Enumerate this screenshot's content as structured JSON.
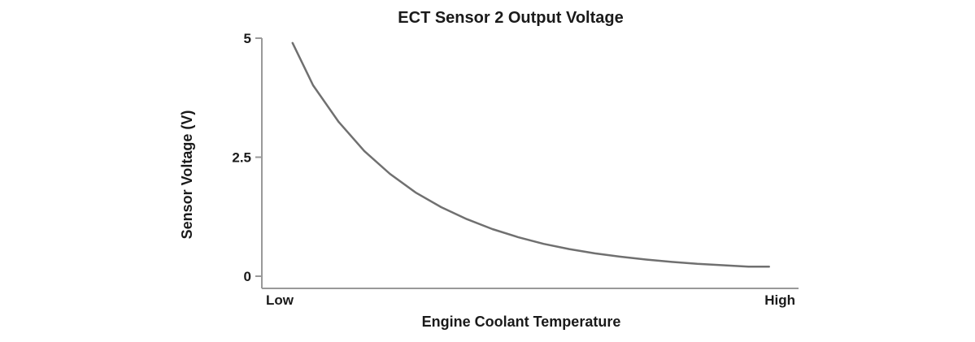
{
  "chart_data": {
    "type": "line",
    "title": "ECT Sensor 2 Output Voltage",
    "xlabel": "Engine Coolant Temperature",
    "ylabel": "Sensor Voltage (V)",
    "x_tick_labels": [
      "Low",
      "High"
    ],
    "y_ticks": [
      {
        "value": 0,
        "label": "0"
      },
      {
        "value": 2.5,
        "label": "2.5"
      },
      {
        "value": 5,
        "label": "5"
      }
    ],
    "ylim": [
      0,
      5
    ],
    "xlim": [
      0,
      1
    ],
    "grid": false,
    "series": [
      {
        "x": [
          0.06,
          0.1,
          0.15,
          0.2,
          0.25,
          0.3,
          0.35,
          0.4,
          0.45,
          0.5,
          0.55,
          0.6,
          0.65,
          0.7,
          0.75,
          0.8,
          0.85,
          0.9,
          0.95,
          0.99
        ],
        "values": [
          4.9,
          4.01,
          3.24,
          2.63,
          2.15,
          1.76,
          1.45,
          1.2,
          0.99,
          0.82,
          0.68,
          0.57,
          0.48,
          0.41,
          0.35,
          0.3,
          0.26,
          0.23,
          0.2,
          0.2
        ]
      }
    ],
    "colors": {
      "curve": "#707070",
      "axis": "#999999",
      "text": "#1a1a1a"
    }
  }
}
